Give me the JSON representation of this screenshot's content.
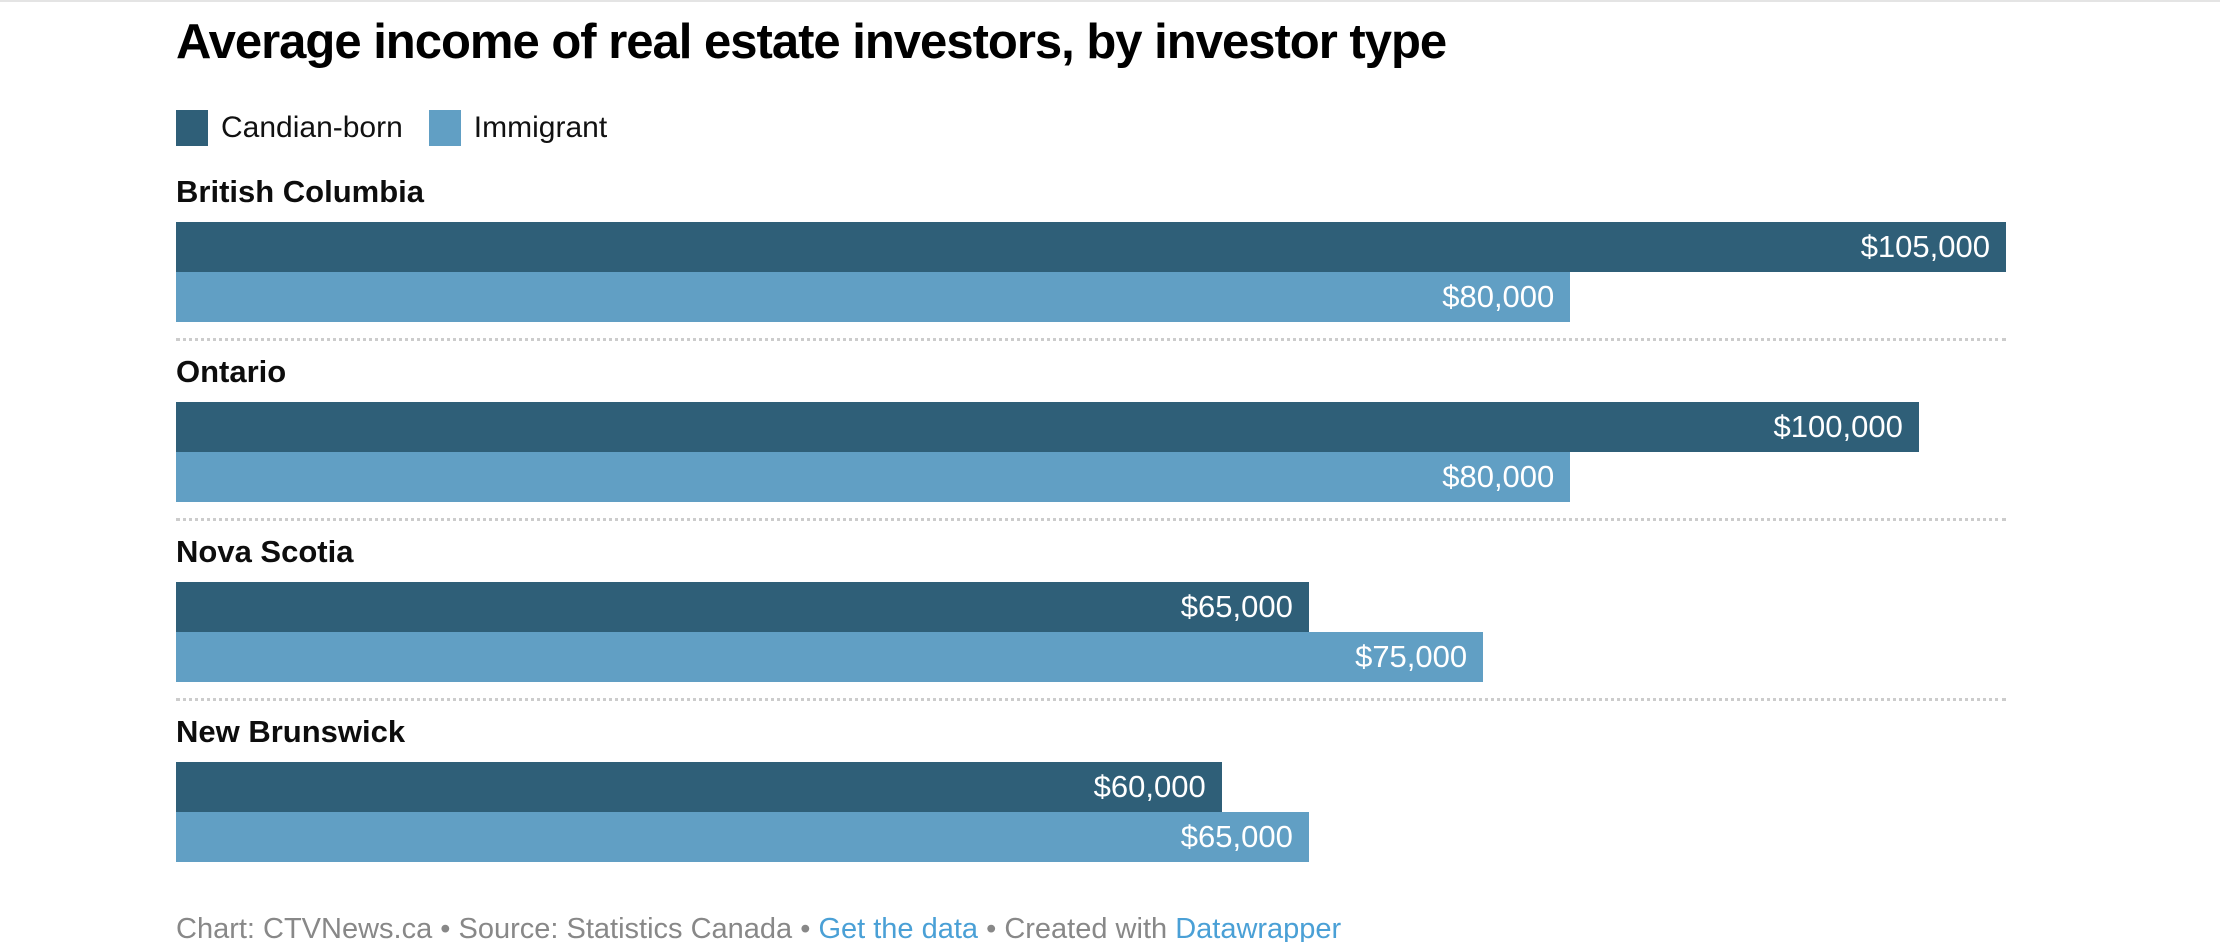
{
  "title": "Average income of real estate investors, by investor type",
  "legend": {
    "items": [
      {
        "label": "Candian-born",
        "color": "#2f5f78"
      },
      {
        "label": "Immigrant",
        "color": "#619fc4"
      }
    ]
  },
  "chart_data": {
    "type": "bar",
    "orientation": "horizontal",
    "title": "Average income of real estate investors, by investor type",
    "categories": [
      "British Columbia",
      "Ontario",
      "Nova Scotia",
      "New Brunswick"
    ],
    "series": [
      {
        "name": "Candian-born",
        "color": "#2f5f78",
        "values": [
          105000,
          100000,
          65000,
          60000
        ],
        "labels": [
          "$105,000",
          "$100,000",
          "$65,000",
          "$60,000"
        ]
      },
      {
        "name": "Immigrant",
        "color": "#619fc4",
        "values": [
          80000,
          80000,
          75000,
          65000
        ],
        "labels": [
          "$80,000",
          "$80,000",
          "$75,000",
          "$65,000"
        ]
      }
    ],
    "xlim": [
      0,
      105000
    ],
    "value_labels": "inside-end",
    "grid": "off",
    "legend_position": "top"
  },
  "footer": {
    "parts": [
      {
        "text": "Chart: CTVNews.ca • Source: Statistics Canada • ",
        "type": "text"
      },
      {
        "text": "Get the data",
        "type": "link"
      },
      {
        "text": " • Created with ",
        "type": "text"
      },
      {
        "text": "Datawrapper",
        "type": "link"
      }
    ]
  },
  "colors": {
    "series_dark": "#2f5f78",
    "series_light": "#619fc4",
    "separator": "#cccccc",
    "footer_text": "#888888",
    "link": "#4aa0d6",
    "value_label": "#ffffff"
  }
}
